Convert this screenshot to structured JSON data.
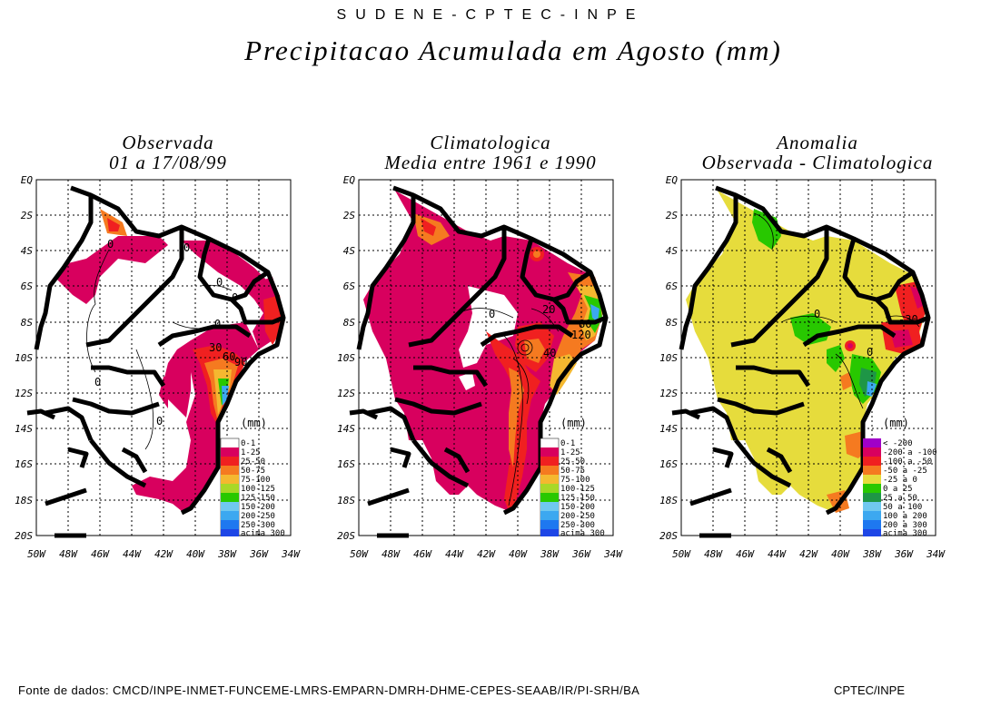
{
  "header": {
    "org": "SUDENE-CPTEC-INPE",
    "title": "Precipitacao Acumulada em Agosto (mm)"
  },
  "panels": [
    {
      "title1": "Observada",
      "title2": "01 a 17/08/99"
    },
    {
      "title1": "Climatologica",
      "title2": "Media entre 1961 e 1990"
    },
    {
      "title1": "Anomalia",
      "title2": "Observada - Climatologica"
    }
  ],
  "axes": {
    "lat_labels": [
      "EQ",
      "2S",
      "4S",
      "6S",
      "8S",
      "10S",
      "12S",
      "14S",
      "16S",
      "18S",
      "20S"
    ],
    "lon_labels": [
      "50W",
      "48W",
      "46W",
      "44W",
      "42W",
      "40W",
      "38W",
      "36W",
      "34W"
    ]
  },
  "legend_unit": "(mm)",
  "legend_precip": [
    {
      "label": "0-1",
      "color": "#ffffff"
    },
    {
      "label": "1-25",
      "color": "#d8005e"
    },
    {
      "label": "25-50",
      "color": "#f02020"
    },
    {
      "label": "50-75",
      "color": "#f57a20"
    },
    {
      "label": "75-100",
      "color": "#f4b830"
    },
    {
      "label": "100-125",
      "color": "#a8d828"
    },
    {
      "label": "125-150",
      "color": "#28c800"
    },
    {
      "label": "150-200",
      "color": "#70c8f0"
    },
    {
      "label": "200-250",
      "color": "#3ca8f0"
    },
    {
      "label": "250-300",
      "color": "#1e78f0"
    },
    {
      "label": "acima 300",
      "color": "#1e46e6"
    }
  ],
  "legend_anomaly": [
    {
      "label": "< -200",
      "color": "#a000c8"
    },
    {
      "label": "-200 a -100",
      "color": "#d8005e"
    },
    {
      "label": "-100 a -50",
      "color": "#f02020"
    },
    {
      "label": "-50 a -25",
      "color": "#f57a20"
    },
    {
      "label": "-25 a 0",
      "color": "#e6dc3c"
    },
    {
      "label": "0 a 25",
      "color": "#28c800"
    },
    {
      "label": "25 a 50",
      "color": "#1e9646"
    },
    {
      "label": "50 a 100",
      "color": "#70c8f0"
    },
    {
      "label": "100 a 200",
      "color": "#3ca8f0"
    },
    {
      "label": "200 a 300",
      "color": "#1e78f0"
    },
    {
      "label": "acima 300",
      "color": "#1e46e6"
    }
  ],
  "contours": {
    "obs": [
      "0",
      "0",
      "0",
      "0",
      "0",
      "0",
      "0",
      "30",
      "60",
      "90"
    ],
    "clim": [
      "0",
      "20",
      "40",
      "80",
      "120"
    ],
    "anom": [
      "0",
      "0",
      "-30"
    ]
  },
  "footer": {
    "source": "Fonte de dados: CMCD/INPE-INMET-FUNCEME-LMRS-EMPARN-DMRH-DHME-CEPES-SEAAB/IR/PI-SRH/BA",
    "credit": "CPTEC/INPE"
  }
}
